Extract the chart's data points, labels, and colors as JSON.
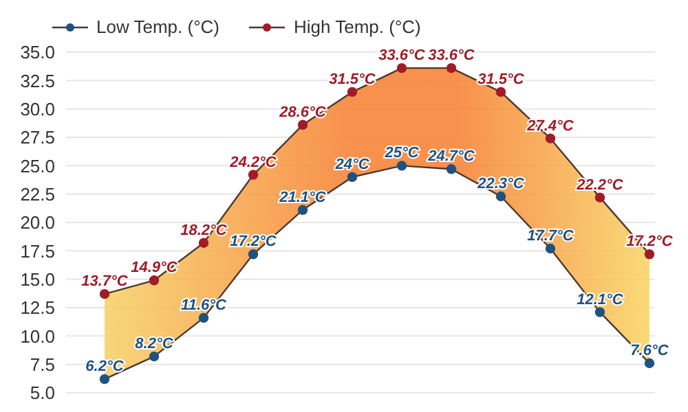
{
  "chart_data": {
    "type": "line",
    "categories": [
      null,
      null,
      null,
      null,
      null,
      null,
      null,
      null,
      null,
      null,
      null,
      null
    ],
    "series": [
      {
        "name": "Low Temp. (°C)",
        "color": "#1f5280",
        "values": [
          6.2,
          8.2,
          11.6,
          17.2,
          21.1,
          24,
          25,
          24.7,
          22.3,
          17.7,
          12.1,
          7.6
        ],
        "value_labels": [
          "6.2°C",
          "8.2°C",
          "11.6°C",
          "17.2°C",
          "21.1°C",
          "24°C",
          "25°C",
          "24.7°C",
          "22.3°C",
          "17.7°C",
          "12.1°C",
          "7.6°C"
        ]
      },
      {
        "name": "High Temp. (°C)",
        "color": "#a01c28",
        "values": [
          13.7,
          14.9,
          18.2,
          24.2,
          28.6,
          31.5,
          33.6,
          33.6,
          31.5,
          27.4,
          22.2,
          17.2
        ],
        "value_labels": [
          "13.7°C",
          "14.9°C",
          "18.2°C",
          "24.2°C",
          "28.6°C",
          "31.5°C",
          "33.6°C",
          "33.6°C",
          "31.5°C",
          "27.4°C",
          "22.2°C",
          "17.2°C"
        ]
      }
    ],
    "ylim": [
      5,
      35
    ],
    "yticks": [
      {
        "value": 5,
        "label": "5.0"
      },
      {
        "value": 7.5,
        "label": "7.5"
      },
      {
        "value": 10,
        "label": "10.0"
      },
      {
        "value": 12.5,
        "label": "12.5"
      },
      {
        "value": 15,
        "label": "15.0"
      },
      {
        "value": 17.5,
        "label": "17.5"
      },
      {
        "value": 20,
        "label": "20.0"
      },
      {
        "value": 22.5,
        "label": "22.5"
      },
      {
        "value": 25,
        "label": "25.0"
      },
      {
        "value": 27.5,
        "label": "27.5"
      },
      {
        "value": 30,
        "label": "30.0"
      },
      {
        "value": 32.5,
        "label": "32.5"
      },
      {
        "value": 35,
        "label": "35.0"
      }
    ],
    "grid": "y",
    "legend": "top left",
    "marker": "circle",
    "line_style": "solid"
  }
}
